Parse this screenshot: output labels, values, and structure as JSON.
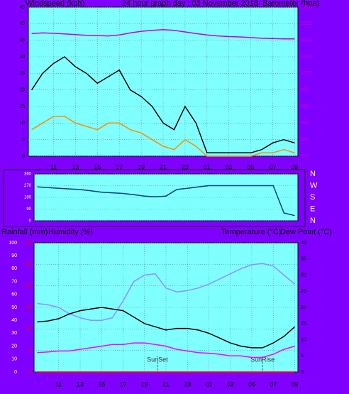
{
  "chart_data": [
    {
      "type": "line",
      "title": "24 hour graph day : 03 November 2018",
      "ylabel": "Windspeed (kph)",
      "y2label": "Barometer (hpa)",
      "x": [
        0,
        1,
        2,
        3,
        4,
        5,
        6,
        7,
        8,
        9,
        10,
        11,
        12,
        13,
        14,
        15,
        16,
        17,
        18,
        19,
        20,
        21,
        22,
        23,
        24
      ],
      "xlim": [
        -0.3,
        24.3
      ],
      "xticks": [
        {
          "value": 2,
          "label": "11"
        },
        {
          "value": 4,
          "label": "13"
        },
        {
          "value": 6,
          "label": "15"
        },
        {
          "value": 8,
          "label": "17"
        },
        {
          "value": 10,
          "label": "19"
        },
        {
          "value": 12,
          "label": "21"
        },
        {
          "value": 14,
          "label": "23"
        },
        {
          "value": 16,
          "label": "01"
        },
        {
          "value": 18,
          "label": "03"
        },
        {
          "value": 20,
          "label": "05"
        },
        {
          "value": 22,
          "label": "07"
        },
        {
          "value": 24,
          "label": "09"
        }
      ],
      "ylim": [
        0,
        45
      ],
      "yticks": [
        0,
        5,
        10,
        15,
        20,
        25,
        30,
        35,
        40,
        45
      ],
      "ycolor": "#000000",
      "y2lim": [
        975,
        1020
      ],
      "y2ticks": [
        975,
        980,
        985,
        990,
        995,
        1000,
        1005,
        1010,
        1015,
        1020
      ],
      "y2color": "#cc00cc",
      "grid": true,
      "series": [
        {
          "color": "#000000",
          "values": [
            20,
            25,
            28,
            30,
            27,
            25,
            22,
            24,
            26,
            20,
            18,
            15,
            10,
            8,
            15,
            10,
            1,
            1,
            1,
            1,
            1,
            2,
            4,
            5,
            4
          ]
        },
        {
          "color": "#ff8c00",
          "values": [
            8,
            10,
            12,
            12,
            10,
            9,
            8,
            10,
            10,
            8,
            7,
            5,
            3,
            2,
            5,
            3,
            0,
            0,
            0,
            0,
            0,
            1,
            1,
            2,
            1
          ]
        },
        {
          "color": "#cc00cc",
          "axis": "y2",
          "values": [
            1012,
            1012.2,
            1012.1,
            1011.9,
            1011.7,
            1011.5,
            1011.4,
            1011.3,
            1011.6,
            1012.2,
            1012.7,
            1013,
            1013.2,
            1013,
            1012.5,
            1012,
            1011.6,
            1011.3,
            1011.1,
            1011,
            1010.8,
            1010.6,
            1010.5,
            1010.4,
            1010.4
          ]
        }
      ]
    },
    {
      "type": "line",
      "x": [
        0,
        1,
        2,
        3,
        4,
        5,
        6,
        7,
        8,
        9,
        10,
        11,
        12,
        13,
        14,
        15,
        16,
        17,
        18,
        19,
        20,
        21,
        22,
        23,
        24
      ],
      "xlim": [
        -0.3,
        24.3
      ],
      "ylim": [
        0,
        360
      ],
      "yticks": [
        0,
        90,
        180,
        270,
        360
      ],
      "ycolor": "#ffffff",
      "y2lim": [
        0,
        360
      ],
      "y2ticks": [
        {
          "value": 360,
          "label": "N"
        },
        {
          "value": 270,
          "label": "W"
        },
        {
          "value": 180,
          "label": "S"
        },
        {
          "value": 90,
          "label": "E"
        },
        {
          "value": 0,
          "label": "N"
        }
      ],
      "y2color": "#ffffff",
      "grid": true,
      "series": [
        {
          "color": "#004080",
          "values": [
            260,
            255,
            250,
            245,
            240,
            230,
            220,
            215,
            210,
            200,
            190,
            185,
            190,
            240,
            250,
            260,
            270,
            270,
            270,
            270,
            270,
            270,
            270,
            60,
            40
          ]
        }
      ]
    },
    {
      "type": "line",
      "ylabel": "Rainfall (mm)",
      "y3label": "Humidity (%)",
      "y2label": "Temperature (°C)",
      "y2label_b": "Dew Point (°C)",
      "x": [
        0,
        1,
        2,
        3,
        4,
        5,
        6,
        7,
        8,
        9,
        10,
        11,
        12,
        13,
        14,
        15,
        16,
        17,
        18,
        19,
        20,
        21,
        22,
        23,
        24
      ],
      "xlim": [
        -0.3,
        24.3
      ],
      "xticks": [
        {
          "value": 2,
          "label": "11"
        },
        {
          "value": 4,
          "label": "13"
        },
        {
          "value": 6,
          "label": "15"
        },
        {
          "value": 8,
          "label": "17"
        },
        {
          "value": 10,
          "label": "19"
        },
        {
          "value": 12,
          "label": "21"
        },
        {
          "value": 14,
          "label": "23"
        },
        {
          "value": 16,
          "label": "01"
        },
        {
          "value": 18,
          "label": "03"
        },
        {
          "value": 20,
          "label": "05"
        },
        {
          "value": 22,
          "label": "07"
        },
        {
          "value": 24,
          "label": "09"
        }
      ],
      "ylim": [
        0,
        30
      ],
      "yticks": [
        0,
        5,
        10,
        15,
        20,
        25,
        30
      ],
      "ycolor": "#ff0000",
      "y3lim": [
        0,
        100
      ],
      "y3ticks": [
        0,
        10,
        20,
        30,
        40,
        50,
        60,
        70,
        80,
        90,
        100
      ],
      "y3color": "#ffffff",
      "y2lim": [
        0,
        40
      ],
      "y2ticks": [
        0,
        5,
        10,
        15,
        20,
        25,
        30,
        35,
        40
      ],
      "y2color": "#000000",
      "grid": true,
      "annotations": [
        {
          "text": "SunSet",
          "x": 11.2
        },
        {
          "text": "SunRise",
          "x": 21.0
        }
      ],
      "series": [
        {
          "color": "#ff0000",
          "values": [
            0,
            0,
            0,
            0,
            0,
            0,
            0,
            0,
            0,
            0,
            0,
            0,
            0,
            0,
            0,
            0,
            0,
            0,
            0,
            0,
            0,
            0,
            0,
            0,
            0
          ]
        },
        {
          "color": "#9090ff",
          "axis": "y3",
          "values": [
            53,
            52,
            50,
            45,
            42,
            40,
            40,
            42,
            55,
            70,
            75,
            76,
            65,
            62,
            63,
            65,
            68,
            72,
            76,
            80,
            83,
            84,
            82,
            75,
            68
          ]
        },
        {
          "color": "#000000",
          "axis": "y2",
          "values": [
            15.5,
            15.8,
            16.5,
            18,
            19,
            19.5,
            20,
            19.5,
            19,
            17,
            15,
            14,
            13,
            13.5,
            13.5,
            13,
            12,
            10.5,
            9,
            8,
            7.5,
            7.5,
            9,
            11,
            14
          ]
        },
        {
          "color": "#ff00ff",
          "axis": "y2",
          "values": [
            6,
            6.2,
            6.5,
            6.5,
            7,
            7.5,
            8,
            8.5,
            8.5,
            9,
            9,
            8.5,
            8,
            7,
            6.5,
            6,
            5.8,
            5.5,
            5,
            5,
            4.5,
            4.5,
            5.5,
            7,
            8
          ]
        }
      ]
    }
  ]
}
